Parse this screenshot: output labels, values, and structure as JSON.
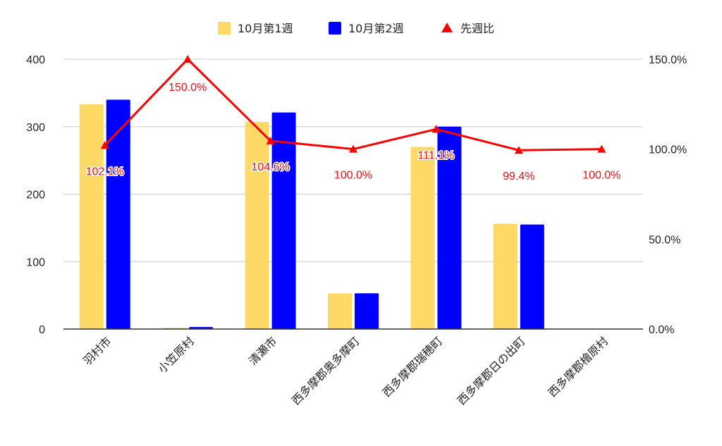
{
  "chart_data": {
    "type": "bar",
    "categories": [
      "羽村市",
      "小笠原村",
      "清瀬市",
      "西多摩郡奥多摩町",
      "西多摩郡瑞穂町",
      "西多摩郡日の出町",
      "西多摩郡檜原村"
    ],
    "series": [
      {
        "name": "10月第1週",
        "type": "bar",
        "axis": "left",
        "color": "#ffd966",
        "values": [
          333,
          2,
          307,
          53,
          270,
          156,
          0
        ]
      },
      {
        "name": "10月第2週",
        "type": "bar",
        "axis": "left",
        "color": "#0000ff",
        "values": [
          340,
          3,
          321,
          53,
          300,
          155,
          0
        ]
      },
      {
        "name": "先週比",
        "type": "line",
        "axis": "right",
        "color": "#ff0000",
        "marker": "triangle",
        "values": [
          102.1,
          150.0,
          104.6,
          100.0,
          111.1,
          99.4,
          100.0
        ]
      }
    ],
    "data_labels": [
      "102.1%",
      "150.0%",
      "104.6%",
      "100.0%",
      "111.1%",
      "99.4%",
      "100.0%"
    ],
    "y_left": {
      "ylim": [
        0,
        400
      ],
      "ticks": [
        "0",
        "100",
        "200",
        "300",
        "400"
      ]
    },
    "y_right": {
      "ylim": [
        0,
        150
      ],
      "ticks": [
        "0.0%",
        "50.0%",
        "100.0%",
        "150.0%"
      ]
    },
    "grid": true,
    "legend": "top"
  }
}
